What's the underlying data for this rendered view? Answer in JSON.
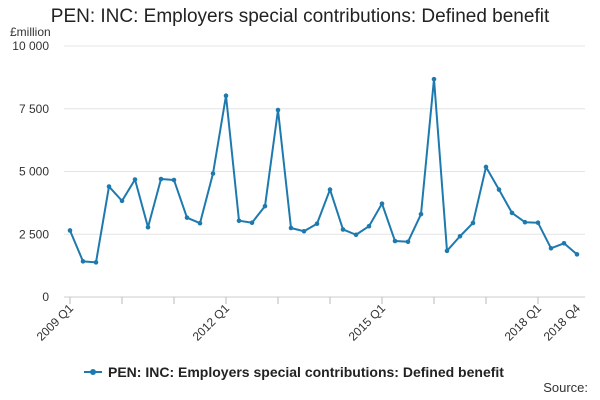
{
  "chart_data": {
    "type": "line",
    "title": "PEN: INC: Employers special contributions: Defined benefit",
    "ylabel": "£million",
    "ylim": [
      0,
      10000
    ],
    "yticks": [
      0,
      2500,
      5000,
      7500,
      10000
    ],
    "ytick_labels": [
      "0",
      "2 500",
      "5 000",
      "7 500",
      "10 000"
    ],
    "xtick_labels": [
      {
        "index": 0,
        "label": "2009 Q1"
      },
      {
        "index": 12,
        "label": "2012 Q1"
      },
      {
        "index": 24,
        "label": "2015 Q1"
      },
      {
        "index": 36,
        "label": "2018 Q1"
      },
      {
        "index": 39,
        "label": "2018 Q4"
      }
    ],
    "grid": true,
    "legend_position": "bottom",
    "x": [
      "2009 Q1",
      "2009 Q2",
      "2009 Q3",
      "2009 Q4",
      "2010 Q1",
      "2010 Q2",
      "2010 Q3",
      "2010 Q4",
      "2011 Q1",
      "2011 Q2",
      "2011 Q3",
      "2011 Q4",
      "2012 Q1",
      "2012 Q2",
      "2012 Q3",
      "2012 Q4",
      "2013 Q1",
      "2013 Q2",
      "2013 Q3",
      "2013 Q4",
      "2014 Q1",
      "2014 Q2",
      "2014 Q3",
      "2014 Q4",
      "2015 Q1",
      "2015 Q2",
      "2015 Q3",
      "2015 Q4",
      "2016 Q1",
      "2016 Q2",
      "2016 Q3",
      "2016 Q4",
      "2017 Q1",
      "2017 Q2",
      "2017 Q3",
      "2017 Q4",
      "2018 Q1",
      "2018 Q2",
      "2018 Q3",
      "2018 Q4"
    ],
    "series": [
      {
        "name": "PEN: INC: Employers special contributions: Defined benefit",
        "color": "#1e7aae",
        "values": [
          2650,
          1420,
          1380,
          4400,
          3830,
          4680,
          2780,
          4700,
          4660,
          3160,
          2940,
          4920,
          8020,
          3040,
          2960,
          3620,
          7450,
          2750,
          2620,
          2920,
          4280,
          2690,
          2480,
          2820,
          3720,
          2230,
          2200,
          3300,
          8680,
          1840,
          2420,
          2950,
          5180,
          4280,
          3350,
          2980,
          2960,
          1940,
          2140,
          1700
        ]
      }
    ]
  },
  "source_label": "Source:"
}
